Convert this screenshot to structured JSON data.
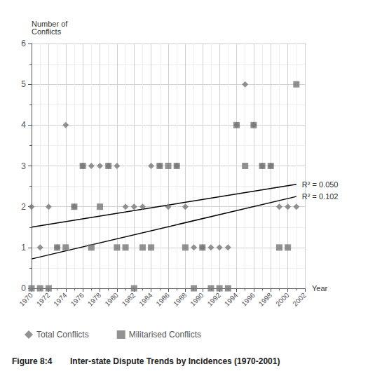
{
  "chart_data": {
    "type": "scatter",
    "title": "Figure 8:4",
    "subtitle": "Inter-state Dispute Trends by Incidences (1970-2001)",
    "xlabel": "Year",
    "ylabel": "Number of\nConflicts",
    "x": [
      1970,
      1971,
      1972,
      1973,
      1974,
      1975,
      1976,
      1977,
      1978,
      1979,
      1980,
      1981,
      1982,
      1983,
      1984,
      1985,
      1986,
      1987,
      1988,
      1989,
      1990,
      1991,
      1992,
      1993,
      1994,
      1995,
      1996,
      1997,
      1998,
      1999,
      2000,
      2001
    ],
    "series": [
      {
        "name": "Total Conflicts",
        "type": "scatter",
        "marker": "diamond",
        "color": "#777777",
        "values": [
          2,
          1,
          2,
          1,
          4,
          2,
          3,
          3,
          3,
          3,
          3,
          2,
          2,
          2,
          3,
          3,
          2,
          3,
          2,
          1,
          1,
          1,
          1,
          1,
          4,
          5,
          4,
          3,
          3,
          2,
          2,
          2
        ]
      },
      {
        "name": "Militarised Conflicts",
        "type": "scatter",
        "marker": "square",
        "color": "#777777",
        "values": [
          0,
          0,
          0,
          1,
          1,
          2,
          3,
          1,
          2,
          3,
          1,
          1,
          0,
          1,
          1,
          3,
          3,
          3,
          1,
          0,
          1,
          0,
          0,
          0,
          4,
          3,
          4,
          3,
          3,
          1,
          1,
          5
        ]
      },
      {
        "type": "line",
        "color": "#000000",
        "x": [
          1970,
          2001
        ],
        "values": [
          1.5,
          2.55
        ],
        "annotation": "R² = 0.050"
      },
      {
        "type": "line",
        "color": "#000000",
        "x": [
          1970,
          2001
        ],
        "values": [
          0.72,
          2.25
        ],
        "annotation": "R² = 0.102"
      }
    ],
    "xlim": [
      1970,
      2002
    ],
    "xticks": [
      1970,
      1972,
      1974,
      1976,
      1978,
      1980,
      1982,
      1984,
      1986,
      1988,
      1990,
      1992,
      1994,
      1996,
      1998,
      2000,
      2002
    ],
    "ylim": [
      0,
      6
    ],
    "yticks": [
      0,
      1,
      2,
      3,
      4,
      5,
      6
    ],
    "grid": true,
    "legend": "bottom"
  }
}
